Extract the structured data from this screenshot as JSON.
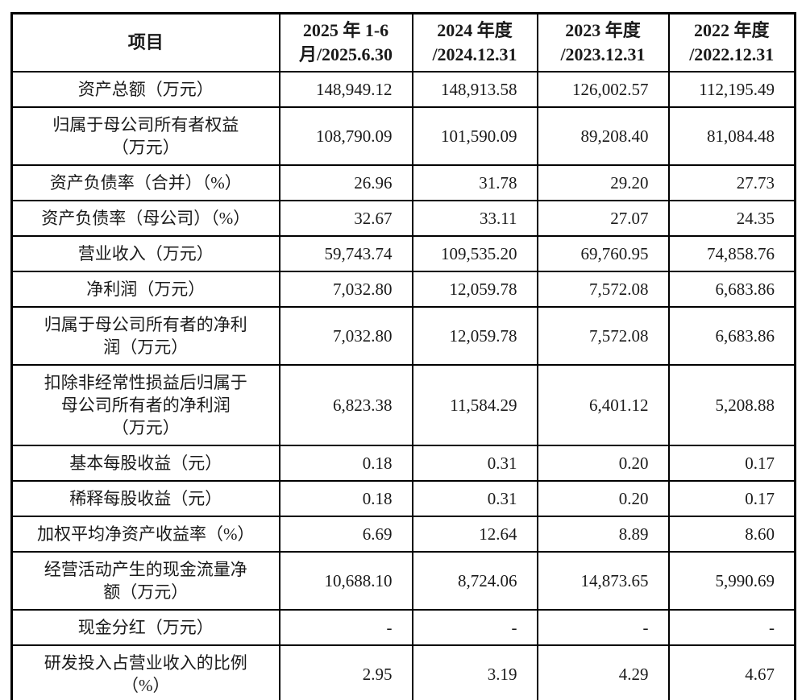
{
  "table": {
    "header": {
      "item": "项目",
      "periods": [
        "2025 年 1-6\n月/2025.6.30",
        "2024 年度\n/2024.12.31",
        "2023 年度\n/2023.12.31",
        "2022 年度\n/2022.12.31"
      ]
    },
    "rows": [
      {
        "label": "资产总额（万元）",
        "values": [
          "148,949.12",
          "148,913.58",
          "126,002.57",
          "112,195.49"
        ]
      },
      {
        "label": "归属于母公司所有者权益\n（万元）",
        "values": [
          "108,790.09",
          "101,590.09",
          "89,208.40",
          "81,084.48"
        ]
      },
      {
        "label": "资产负债率（合并）（%）",
        "values": [
          "26.96",
          "31.78",
          "29.20",
          "27.73"
        ]
      },
      {
        "label": "资产负债率（母公司）（%）",
        "values": [
          "32.67",
          "33.11",
          "27.07",
          "24.35"
        ]
      },
      {
        "label": "营业收入（万元）",
        "values": [
          "59,743.74",
          "109,535.20",
          "69,760.95",
          "74,858.76"
        ]
      },
      {
        "label": "净利润（万元）",
        "values": [
          "7,032.80",
          "12,059.78",
          "7,572.08",
          "6,683.86"
        ]
      },
      {
        "label": "归属于母公司所有者的净利\n润（万元）",
        "values": [
          "7,032.80",
          "12,059.78",
          "7,572.08",
          "6,683.86"
        ]
      },
      {
        "label": "扣除非经常性损益后归属于\n母公司所有者的净利润\n（万元）",
        "values": [
          "6,823.38",
          "11,584.29",
          "6,401.12",
          "5,208.88"
        ]
      },
      {
        "label": "基本每股收益（元）",
        "values": [
          "0.18",
          "0.31",
          "0.20",
          "0.17"
        ]
      },
      {
        "label": "稀释每股收益（元）",
        "values": [
          "0.18",
          "0.31",
          "0.20",
          "0.17"
        ]
      },
      {
        "label": "加权平均净资产收益率（%）",
        "values": [
          "6.69",
          "12.64",
          "8.89",
          "8.60"
        ]
      },
      {
        "label": "经营活动产生的现金流量净\n额（万元）",
        "values": [
          "10,688.10",
          "8,724.06",
          "14,873.65",
          "5,990.69"
        ]
      },
      {
        "label": "现金分红（万元）",
        "values": [
          "-",
          "-",
          "-",
          "-"
        ]
      },
      {
        "label": "研发投入占营业收入的比例\n（%）",
        "values": [
          "2.95",
          "3.19",
          "4.29",
          "4.67"
        ]
      }
    ],
    "colors": {
      "border": "#000000",
      "text": "#1a1a1a",
      "background": "#ffffff"
    }
  }
}
